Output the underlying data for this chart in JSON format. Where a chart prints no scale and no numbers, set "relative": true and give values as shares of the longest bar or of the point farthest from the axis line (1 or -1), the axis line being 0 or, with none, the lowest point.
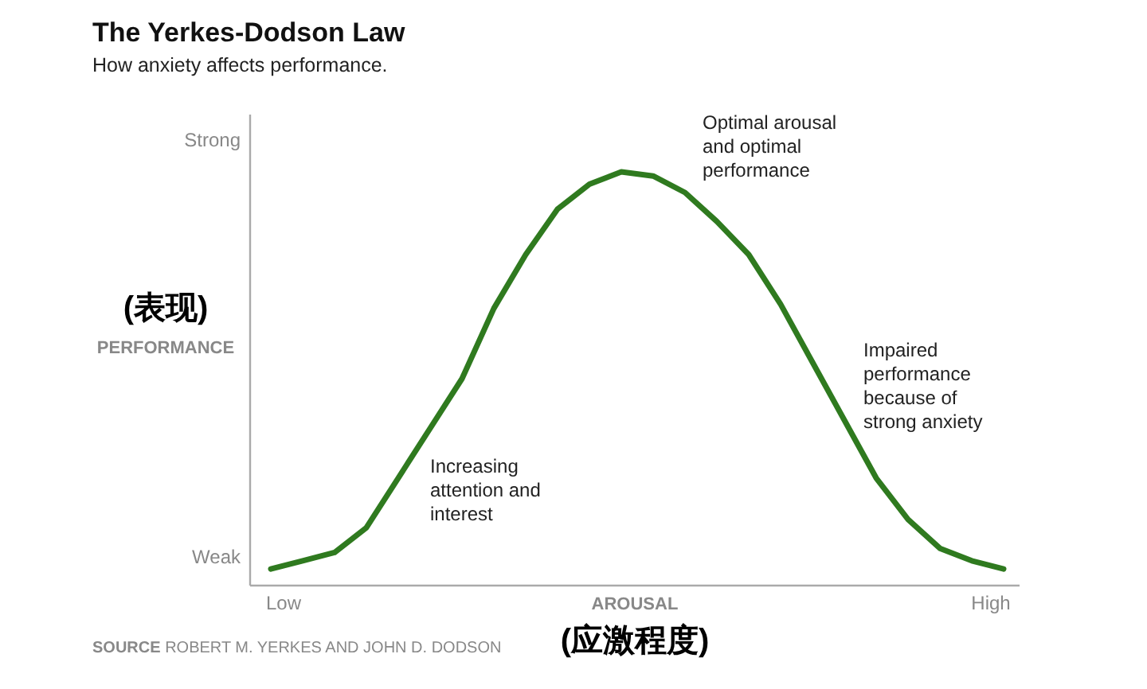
{
  "chart_data": {
    "type": "line",
    "title": "The Yerkes-Dodson Law",
    "subtitle": "How anxiety affects performance.",
    "xlabel": "AROUSAL\n(应激程度)",
    "ylabel": "(表现)\nPERFORMANCE",
    "relative": true,
    "categories": [
      null,
      null,
      null,
      null,
      null,
      null,
      null,
      null,
      null,
      null,
      null,
      null,
      null,
      null,
      null,
      null,
      null,
      null,
      null,
      null,
      null,
      null,
      null,
      null
    ],
    "series": [
      {
        "color": "#2f7a1f",
        "values": [
          0.04,
          0.06,
          0.08,
          0.14,
          0.26,
          0.38,
          0.5,
          0.67,
          0.8,
          0.91,
          0.97,
          1.0,
          0.99,
          0.95,
          0.88,
          0.8,
          0.68,
          0.54,
          0.4,
          0.26,
          0.16,
          0.09,
          0.06,
          0.04
        ]
      }
    ],
    "annotations": [
      "Optimal arousal\nand optimal\nperformance",
      "Impaired\nperformance\nbecause of\nstrong anxiety",
      "Increasing\nattention and\ninterest",
      "Strong",
      "Weak",
      "Low",
      "High",
      "SOURCE ROBERT M. YERKES AND JOHN D. DODSON"
    ],
    "line_style": "solid"
  }
}
